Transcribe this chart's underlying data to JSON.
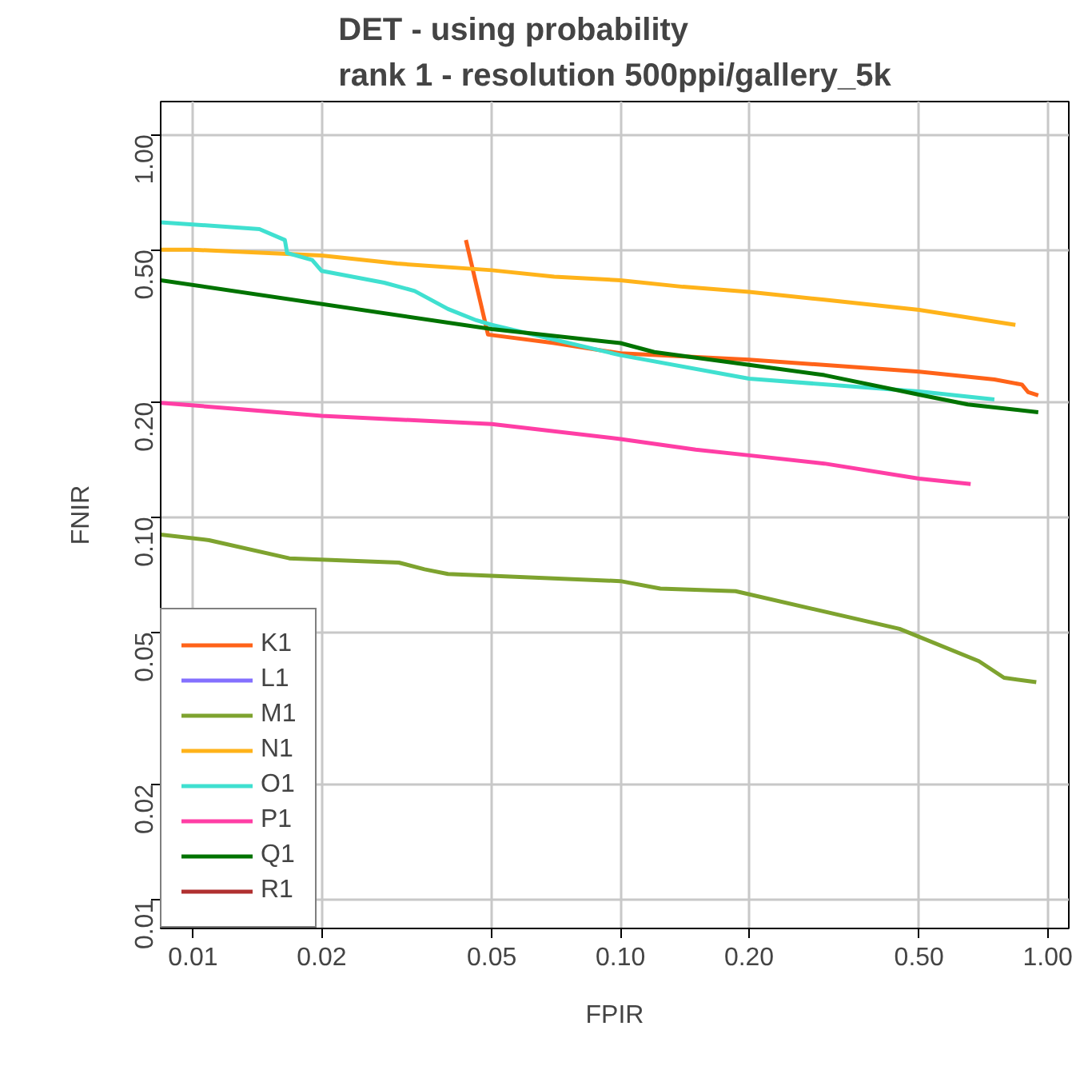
{
  "chart_data": {
    "type": "line",
    "title": "DET - using probability\nrank 1 - resolution 500ppi/gallery_5k",
    "xlabel": "FPIR",
    "ylabel": "FNIR",
    "log": "xy",
    "grid": true,
    "legend": "bottom left",
    "line_style": "solid",
    "xlim": [
      0.0084,
      1.12
    ],
    "ylim": [
      0.0084,
      1.22
    ],
    "xticks": [
      {
        "value": 0.01,
        "label": "0.01"
      },
      {
        "value": 0.02,
        "label": "0.02"
      },
      {
        "value": 0.05,
        "label": "0.05"
      },
      {
        "value": 0.1,
        "label": "0.10"
      },
      {
        "value": 0.2,
        "label": "0.20"
      },
      {
        "value": 0.5,
        "label": "0.50"
      },
      {
        "value": 1,
        "label": "1.00"
      }
    ],
    "yticks": [
      {
        "value": 0.01,
        "label": "0.01"
      },
      {
        "value": 0.02,
        "label": "0.02"
      },
      {
        "value": 0.05,
        "label": "0.05"
      },
      {
        "value": 0.1,
        "label": "0.10"
      },
      {
        "value": 0.2,
        "label": "0.20"
      },
      {
        "value": 0.5,
        "label": "0.50"
      },
      {
        "value": 1,
        "label": "1.00"
      }
    ],
    "series": [
      {
        "name": "K1",
        "color": "#ff6319",
        "x": [
          0.0435,
          0.049,
          0.07,
          0.1,
          0.2,
          0.5,
          0.75,
          0.87,
          0.9,
          0.95
        ],
        "values": [
          0.53,
          0.3,
          0.285,
          0.268,
          0.258,
          0.24,
          0.229,
          0.222,
          0.212,
          0.208
        ]
      },
      {
        "name": "L1",
        "color": "#8470ff"
      },
      {
        "name": "M1",
        "color": "#7ea32f",
        "x": [
          0.0084,
          0.0109,
          0.0168,
          0.0303,
          0.0348,
          0.0395,
          0.1,
          0.124,
          0.186,
          0.45,
          0.69,
          0.79,
          0.94
        ],
        "values": [
          0.09,
          0.087,
          0.078,
          0.076,
          0.073,
          0.071,
          0.068,
          0.065,
          0.064,
          0.051,
          0.042,
          0.038,
          0.037
        ]
      },
      {
        "name": "N1",
        "color": "#ffb31a",
        "x": [
          0.0084,
          0.01,
          0.02,
          0.03,
          0.05,
          0.07,
          0.1,
          0.14,
          0.2,
          0.3,
          0.5,
          0.84
        ],
        "values": [
          0.5,
          0.5,
          0.483,
          0.46,
          0.442,
          0.425,
          0.416,
          0.4,
          0.388,
          0.37,
          0.348,
          0.318
        ]
      },
      {
        "name": "O1",
        "color": "#40e0d0",
        "x": [
          0.0084,
          0.0143,
          0.0164,
          0.0166,
          0.019,
          0.02,
          0.028,
          0.033,
          0.0395,
          0.046,
          0.05,
          0.1,
          0.2,
          0.5,
          0.75
        ],
        "values": [
          0.59,
          0.566,
          0.53,
          0.49,
          0.47,
          0.44,
          0.41,
          0.39,
          0.35,
          0.327,
          0.318,
          0.265,
          0.23,
          0.213,
          0.203
        ]
      },
      {
        "name": "P1",
        "color": "#ff3ea5",
        "x": [
          0.0084,
          0.02,
          0.05,
          0.1,
          0.15,
          0.2,
          0.3,
          0.5,
          0.66
        ],
        "values": [
          0.199,
          0.184,
          0.175,
          0.16,
          0.15,
          0.145,
          0.138,
          0.126,
          0.122
        ]
      },
      {
        "name": "Q1",
        "color": "#007300",
        "x": [
          0.0084,
          0.05,
          0.1,
          0.12,
          0.2,
          0.3,
          0.5,
          0.65,
          0.95
        ],
        "values": [
          0.416,
          0.31,
          0.285,
          0.27,
          0.25,
          0.235,
          0.209,
          0.197,
          0.188
        ]
      },
      {
        "name": "R1",
        "color": "#b03030"
      }
    ]
  }
}
